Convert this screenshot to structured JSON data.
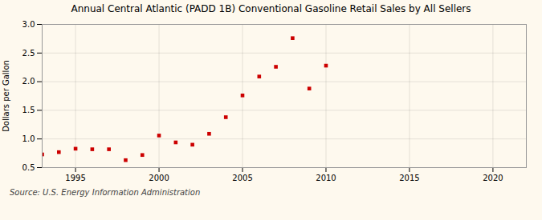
{
  "chart_data": {
    "type": "scatter",
    "title": "Annual Central Atlantic (PADD 1B) Conventional Gasoline Retail Sales by All Sellers",
    "ylabel": "Dollars per Gallon",
    "source": "Source: U.S. Energy Information Administration",
    "x": [
      1993,
      1994,
      1995,
      1996,
      1997,
      1998,
      1999,
      2000,
      2001,
      2002,
      2003,
      2004,
      2005,
      2006,
      2007,
      2008,
      2009,
      2010
    ],
    "values": [
      0.73,
      0.77,
      0.83,
      0.82,
      0.82,
      0.63,
      0.72,
      1.06,
      0.94,
      0.9,
      1.09,
      1.38,
      1.76,
      2.09,
      2.26,
      2.76,
      1.88,
      2.28
    ],
    "color": "#cc0000",
    "marker": "square",
    "xlim": [
      1993,
      2022
    ],
    "ylim": [
      0.5,
      3.0
    ],
    "xticks": [
      1995,
      2000,
      2005,
      2010,
      2015,
      2020
    ],
    "yticks": [
      0.5,
      {
        "value": 1,
        "label": "1.0"
      },
      1.5,
      {
        "value": 2,
        "label": "2.0"
      },
      2.5,
      {
        "value": 3,
        "label": "3.0"
      }
    ],
    "grid": true
  }
}
